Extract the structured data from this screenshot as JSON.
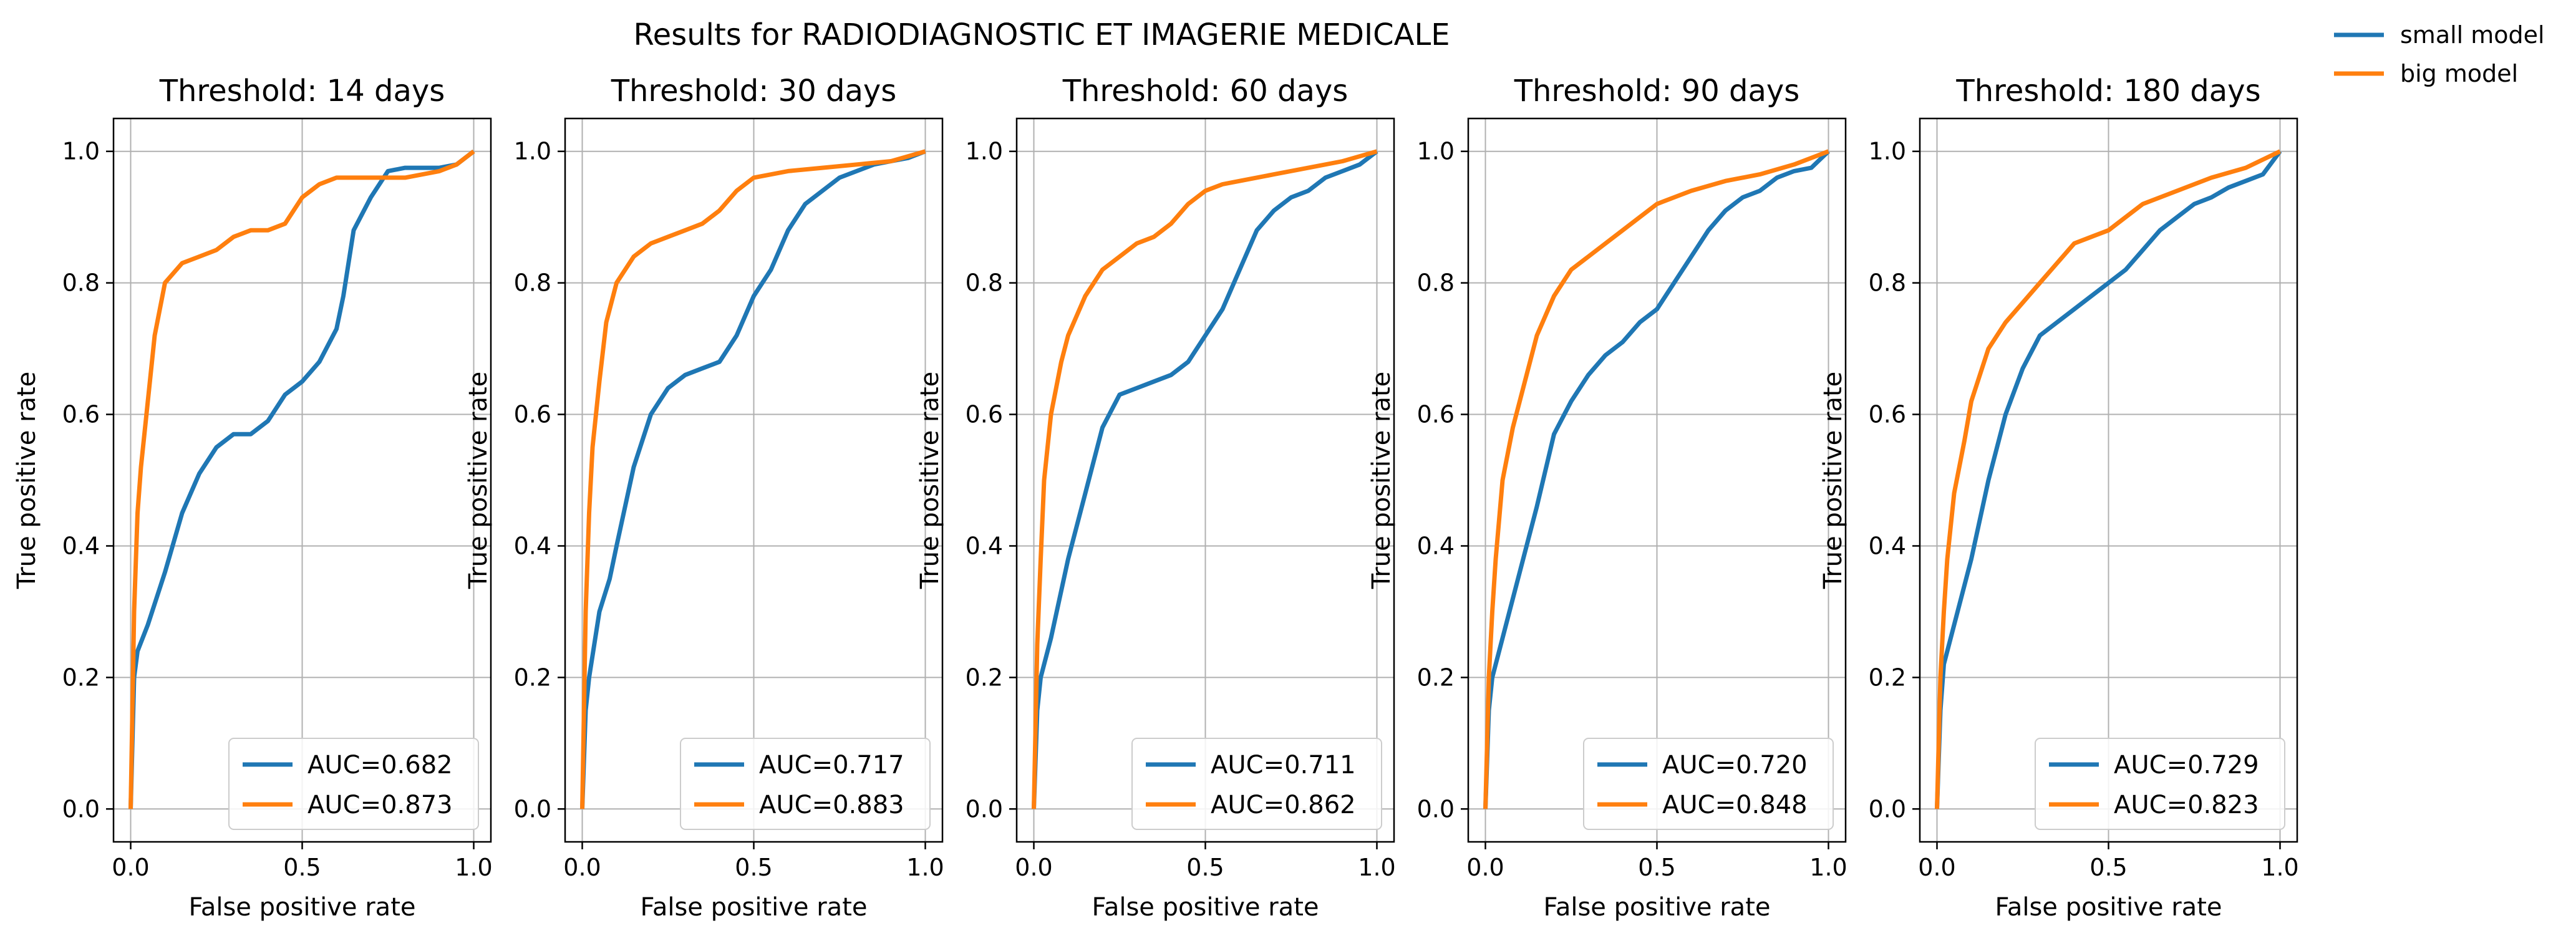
{
  "title": "Results for RADIODIAGNOSTIC ET IMAGERIE MEDICALE",
  "colors": {
    "small_model": "#1f77b4",
    "big_model": "#ff7f0e",
    "grid": "#b0b0b0"
  },
  "figure_legend": {
    "placement": "top-right",
    "entries": [
      {
        "label": "small model",
        "color": "#1f77b4"
      },
      {
        "label": "big model",
        "color": "#ff7f0e"
      }
    ]
  },
  "chart_data": [
    {
      "type": "line",
      "title": "Threshold: 14 days",
      "xlabel": "False positive rate",
      "ylabel": "True positive rate",
      "xlim": [
        -0.05,
        1.05
      ],
      "ylim": [
        -0.05,
        1.05
      ],
      "xticks": [
        "0.0",
        "0.5",
        "1.0"
      ],
      "yticks": [
        "0.0",
        "0.2",
        "0.4",
        "0.6",
        "0.8",
        "1.0"
      ],
      "grid": true,
      "legend": "lower-right",
      "series": [
        {
          "name": "AUC=0.682",
          "color": "#1f77b4",
          "x": [
            0,
            0.01,
            0.02,
            0.05,
            0.1,
            0.15,
            0.2,
            0.25,
            0.3,
            0.35,
            0.4,
            0.45,
            0.5,
            0.55,
            0.6,
            0.62,
            0.65,
            0.7,
            0.75,
            0.8,
            0.85,
            0.9,
            0.95,
            1.0
          ],
          "y": [
            0,
            0.2,
            0.24,
            0.28,
            0.36,
            0.45,
            0.51,
            0.55,
            0.57,
            0.57,
            0.59,
            0.63,
            0.65,
            0.68,
            0.73,
            0.78,
            0.88,
            0.93,
            0.97,
            0.975,
            0.975,
            0.975,
            0.98,
            1.0
          ]
        },
        {
          "name": "AUC=0.873",
          "color": "#ff7f0e",
          "x": [
            0,
            0.01,
            0.02,
            0.03,
            0.05,
            0.07,
            0.1,
            0.15,
            0.2,
            0.25,
            0.3,
            0.35,
            0.4,
            0.45,
            0.5,
            0.55,
            0.6,
            0.7,
            0.8,
            0.9,
            0.95,
            1.0
          ],
          "y": [
            0,
            0.3,
            0.45,
            0.52,
            0.62,
            0.72,
            0.8,
            0.83,
            0.84,
            0.85,
            0.87,
            0.88,
            0.88,
            0.89,
            0.93,
            0.95,
            0.96,
            0.96,
            0.96,
            0.97,
            0.98,
            1.0
          ]
        }
      ]
    },
    {
      "type": "line",
      "title": "Threshold: 30 days",
      "xlabel": "False positive rate",
      "ylabel": "True positive rate",
      "xlim": [
        -0.05,
        1.05
      ],
      "ylim": [
        -0.05,
        1.05
      ],
      "xticks": [
        "0.0",
        "0.5",
        "1.0"
      ],
      "yticks": [
        "0.0",
        "0.2",
        "0.4",
        "0.6",
        "0.8",
        "1.0"
      ],
      "grid": true,
      "legend": "lower-right",
      "series": [
        {
          "name": "AUC=0.717",
          "color": "#1f77b4",
          "x": [
            0,
            0.01,
            0.02,
            0.05,
            0.08,
            0.1,
            0.15,
            0.2,
            0.25,
            0.3,
            0.35,
            0.4,
            0.45,
            0.5,
            0.55,
            0.6,
            0.65,
            0.7,
            0.75,
            0.8,
            0.85,
            0.9,
            0.95,
            1.0
          ],
          "y": [
            0,
            0.15,
            0.2,
            0.3,
            0.35,
            0.4,
            0.52,
            0.6,
            0.64,
            0.66,
            0.67,
            0.68,
            0.72,
            0.78,
            0.82,
            0.88,
            0.92,
            0.94,
            0.96,
            0.97,
            0.98,
            0.985,
            0.99,
            1.0
          ]
        },
        {
          "name": "AUC=0.883",
          "color": "#ff7f0e",
          "x": [
            0,
            0.01,
            0.02,
            0.03,
            0.05,
            0.07,
            0.1,
            0.15,
            0.2,
            0.25,
            0.3,
            0.35,
            0.4,
            0.45,
            0.5,
            0.6,
            0.7,
            0.8,
            0.9,
            1.0
          ],
          "y": [
            0,
            0.3,
            0.45,
            0.55,
            0.65,
            0.74,
            0.8,
            0.84,
            0.86,
            0.87,
            0.88,
            0.89,
            0.91,
            0.94,
            0.96,
            0.97,
            0.975,
            0.98,
            0.985,
            1.0
          ]
        }
      ]
    },
    {
      "type": "line",
      "title": "Threshold: 60 days",
      "xlabel": "False positive rate",
      "ylabel": "True positive rate",
      "xlim": [
        -0.05,
        1.05
      ],
      "ylim": [
        -0.05,
        1.05
      ],
      "xticks": [
        "0.0",
        "0.5",
        "1.0"
      ],
      "yticks": [
        "0.0",
        "0.2",
        "0.4",
        "0.6",
        "0.8",
        "1.0"
      ],
      "grid": true,
      "legend": "lower-right",
      "series": [
        {
          "name": "AUC=0.711",
          "color": "#1f77b4",
          "x": [
            0,
            0.01,
            0.02,
            0.05,
            0.1,
            0.15,
            0.2,
            0.25,
            0.3,
            0.35,
            0.4,
            0.45,
            0.5,
            0.55,
            0.6,
            0.65,
            0.7,
            0.75,
            0.8,
            0.85,
            0.9,
            0.95,
            1.0
          ],
          "y": [
            0,
            0.15,
            0.2,
            0.26,
            0.38,
            0.48,
            0.58,
            0.63,
            0.64,
            0.65,
            0.66,
            0.68,
            0.72,
            0.76,
            0.82,
            0.88,
            0.91,
            0.93,
            0.94,
            0.96,
            0.97,
            0.98,
            1.0
          ]
        },
        {
          "name": "AUC=0.862",
          "color": "#ff7f0e",
          "x": [
            0,
            0.01,
            0.02,
            0.03,
            0.05,
            0.08,
            0.1,
            0.15,
            0.2,
            0.25,
            0.3,
            0.35,
            0.4,
            0.45,
            0.5,
            0.55,
            0.6,
            0.7,
            0.8,
            0.9,
            1.0
          ],
          "y": [
            0,
            0.25,
            0.38,
            0.5,
            0.6,
            0.68,
            0.72,
            0.78,
            0.82,
            0.84,
            0.86,
            0.87,
            0.89,
            0.92,
            0.94,
            0.95,
            0.955,
            0.965,
            0.975,
            0.985,
            1.0
          ]
        }
      ]
    },
    {
      "type": "line",
      "title": "Threshold: 90 days",
      "xlabel": "False positive rate",
      "ylabel": "True positive rate",
      "xlim": [
        -0.05,
        1.05
      ],
      "ylim": [
        -0.05,
        1.05
      ],
      "xticks": [
        "0.0",
        "0.5",
        "1.0"
      ],
      "yticks": [
        "0.0",
        "0.2",
        "0.4",
        "0.6",
        "0.8",
        "1.0"
      ],
      "grid": true,
      "legend": "lower-right",
      "series": [
        {
          "name": "AUC=0.720",
          "color": "#1f77b4",
          "x": [
            0,
            0.01,
            0.02,
            0.05,
            0.1,
            0.15,
            0.2,
            0.25,
            0.3,
            0.35,
            0.4,
            0.45,
            0.5,
            0.55,
            0.6,
            0.65,
            0.7,
            0.75,
            0.8,
            0.85,
            0.9,
            0.95,
            1.0
          ],
          "y": [
            0,
            0.15,
            0.2,
            0.26,
            0.36,
            0.46,
            0.57,
            0.62,
            0.66,
            0.69,
            0.71,
            0.74,
            0.76,
            0.8,
            0.84,
            0.88,
            0.91,
            0.93,
            0.94,
            0.96,
            0.97,
            0.975,
            1.0
          ]
        },
        {
          "name": "AUC=0.848",
          "color": "#ff7f0e",
          "x": [
            0,
            0.01,
            0.02,
            0.03,
            0.05,
            0.08,
            0.1,
            0.15,
            0.2,
            0.25,
            0.3,
            0.35,
            0.4,
            0.45,
            0.5,
            0.55,
            0.6,
            0.7,
            0.8,
            0.9,
            1.0
          ],
          "y": [
            0,
            0.2,
            0.3,
            0.38,
            0.5,
            0.58,
            0.62,
            0.72,
            0.78,
            0.82,
            0.84,
            0.86,
            0.88,
            0.9,
            0.92,
            0.93,
            0.94,
            0.955,
            0.965,
            0.98,
            1.0
          ]
        }
      ]
    },
    {
      "type": "line",
      "title": "Threshold: 180 days",
      "xlabel": "False positive rate",
      "ylabel": "True positive rate",
      "xlim": [
        -0.05,
        1.05
      ],
      "ylim": [
        -0.05,
        1.05
      ],
      "xticks": [
        "0.0",
        "0.5",
        "1.0"
      ],
      "yticks": [
        "0.0",
        "0.2",
        "0.4",
        "0.6",
        "0.8",
        "1.0"
      ],
      "grid": true,
      "legend": "lower-right",
      "series": [
        {
          "name": "AUC=0.729",
          "color": "#1f77b4",
          "x": [
            0,
            0.01,
            0.02,
            0.05,
            0.1,
            0.15,
            0.2,
            0.25,
            0.3,
            0.35,
            0.4,
            0.45,
            0.5,
            0.55,
            0.6,
            0.65,
            0.7,
            0.75,
            0.8,
            0.85,
            0.9,
            0.95,
            1.0
          ],
          "y": [
            0,
            0.15,
            0.22,
            0.28,
            0.38,
            0.5,
            0.6,
            0.67,
            0.72,
            0.74,
            0.76,
            0.78,
            0.8,
            0.82,
            0.85,
            0.88,
            0.9,
            0.92,
            0.93,
            0.945,
            0.955,
            0.965,
            1.0
          ]
        },
        {
          "name": "AUC=0.823",
          "color": "#ff7f0e",
          "x": [
            0,
            0.01,
            0.02,
            0.03,
            0.05,
            0.08,
            0.1,
            0.15,
            0.2,
            0.25,
            0.3,
            0.35,
            0.4,
            0.45,
            0.5,
            0.55,
            0.6,
            0.7,
            0.8,
            0.9,
            1.0
          ],
          "y": [
            0,
            0.2,
            0.3,
            0.38,
            0.48,
            0.56,
            0.62,
            0.7,
            0.74,
            0.77,
            0.8,
            0.83,
            0.86,
            0.87,
            0.88,
            0.9,
            0.92,
            0.94,
            0.96,
            0.975,
            1.0
          ]
        }
      ]
    }
  ]
}
